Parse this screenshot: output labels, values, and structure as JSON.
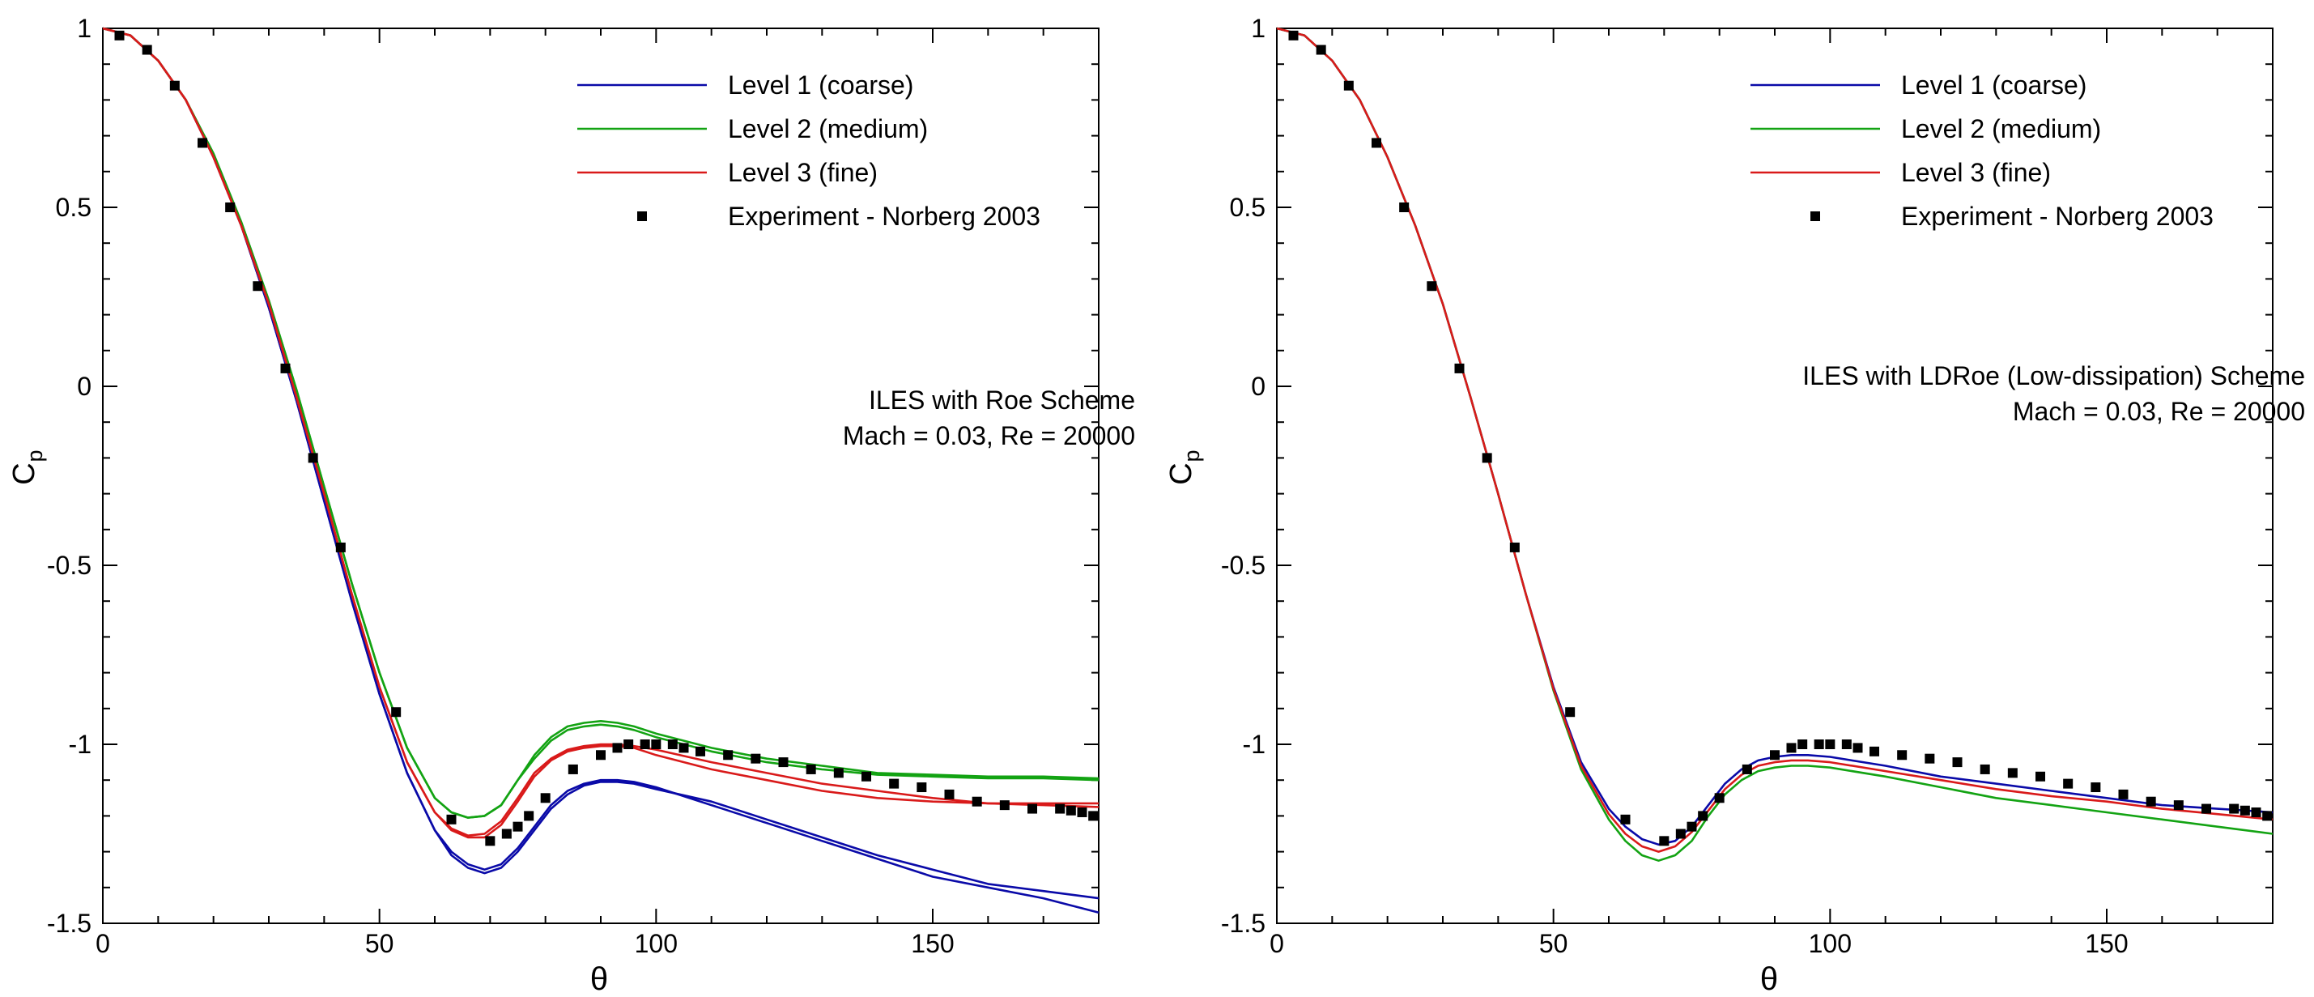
{
  "colors": {
    "level1": "#0a0aa8",
    "level2": "#13a313",
    "level3": "#d91a1a",
    "experiment": "#000000"
  },
  "chart_data": [
    {
      "type": "line",
      "panel": "left",
      "xlabel": "θ",
      "ylabel_main": "C",
      "ylabel_sub": "p",
      "xlim": [
        0,
        180
      ],
      "ylim": [
        -1.5,
        1
      ],
      "x_ticks": [
        0,
        50,
        100,
        150
      ],
      "y_ticks": [
        -1.5,
        -1,
        -0.5,
        0,
        0.5,
        1
      ],
      "y_tick_labels": [
        "-1.5",
        "-1",
        "-0.5",
        "0",
        "0.5",
        "1"
      ],
      "annotation": [
        "ILES with Roe Scheme",
        "Mach = 0.03, Re = 20000"
      ],
      "legend_position": "top-right",
      "series": [
        {
          "name": "Level 1 (coarse)",
          "style": "line",
          "color_key": "level1",
          "x": [
            0,
            5,
            10,
            15,
            20,
            25,
            30,
            35,
            40,
            45,
            50,
            55,
            60,
            63,
            66,
            69,
            72,
            75,
            78,
            81,
            84,
            87,
            90,
            93,
            96,
            100,
            110,
            120,
            130,
            140,
            150,
            160,
            170,
            180
          ],
          "y": [
            1,
            0.98,
            0.91,
            0.8,
            0.64,
            0.45,
            0.22,
            -0.04,
            -0.32,
            -0.6,
            -0.86,
            -1.08,
            -1.24,
            -1.3,
            -1.335,
            -1.35,
            -1.335,
            -1.29,
            -1.23,
            -1.17,
            -1.13,
            -1.11,
            -1.1,
            -1.1,
            -1.105,
            -1.12,
            -1.17,
            -1.22,
            -1.27,
            -1.32,
            -1.37,
            -1.4,
            -1.43,
            -1.47
          ]
        },
        {
          "name": "Level 1 (coarse)",
          "style": "line",
          "color_key": "level1",
          "legend": false,
          "x": [
            0,
            5,
            10,
            15,
            20,
            25,
            30,
            35,
            40,
            45,
            50,
            55,
            60,
            63,
            66,
            69,
            72,
            75,
            78,
            81,
            84,
            87,
            90,
            93,
            96,
            100,
            110,
            120,
            130,
            140,
            150,
            160,
            170,
            180
          ],
          "y": [
            1,
            0.98,
            0.91,
            0.8,
            0.64,
            0.45,
            0.22,
            -0.04,
            -0.32,
            -0.6,
            -0.86,
            -1.08,
            -1.24,
            -1.31,
            -1.345,
            -1.36,
            -1.345,
            -1.3,
            -1.24,
            -1.18,
            -1.14,
            -1.115,
            -1.105,
            -1.105,
            -1.11,
            -1.125,
            -1.16,
            -1.21,
            -1.26,
            -1.31,
            -1.35,
            -1.39,
            -1.41,
            -1.43
          ]
        },
        {
          "name": "Level 2 (medium)",
          "style": "line",
          "color_key": "level2",
          "x": [
            0,
            5,
            10,
            15,
            20,
            25,
            30,
            35,
            40,
            45,
            50,
            55,
            60,
            63,
            66,
            69,
            72,
            75,
            78,
            81,
            84,
            87,
            90,
            93,
            96,
            100,
            110,
            120,
            130,
            140,
            150,
            160,
            170,
            180
          ],
          "y": [
            1,
            0.98,
            0.91,
            0.8,
            0.65,
            0.46,
            0.24,
            -0.01,
            -0.28,
            -0.55,
            -0.8,
            -1.01,
            -1.15,
            -1.19,
            -1.205,
            -1.2,
            -1.17,
            -1.1,
            -1.03,
            -0.98,
            -0.95,
            -0.94,
            -0.935,
            -0.94,
            -0.95,
            -0.97,
            -1.01,
            -1.04,
            -1.06,
            -1.08,
            -1.085,
            -1.09,
            -1.09,
            -1.095
          ]
        },
        {
          "name": "Level 2 (medium)",
          "style": "line",
          "color_key": "level2",
          "legend": false,
          "x": [
            0,
            5,
            10,
            15,
            20,
            25,
            30,
            35,
            40,
            45,
            50,
            55,
            60,
            63,
            66,
            69,
            72,
            75,
            78,
            81,
            84,
            87,
            90,
            93,
            96,
            100,
            110,
            120,
            130,
            140,
            150,
            160,
            170,
            180
          ],
          "y": [
            1,
            0.98,
            0.91,
            0.8,
            0.65,
            0.46,
            0.24,
            -0.01,
            -0.28,
            -0.55,
            -0.8,
            -1.01,
            -1.15,
            -1.19,
            -1.205,
            -1.2,
            -1.17,
            -1.1,
            -1.04,
            -0.99,
            -0.96,
            -0.95,
            -0.945,
            -0.95,
            -0.96,
            -0.98,
            -1.02,
            -1.05,
            -1.07,
            -1.085,
            -1.09,
            -1.095,
            -1.095,
            -1.1
          ]
        },
        {
          "name": "Level 3 (fine)",
          "style": "line",
          "color_key": "level3",
          "x": [
            0,
            5,
            10,
            15,
            20,
            25,
            30,
            35,
            40,
            45,
            50,
            55,
            60,
            63,
            66,
            69,
            72,
            75,
            78,
            81,
            84,
            87,
            90,
            93,
            96,
            100,
            110,
            120,
            130,
            140,
            150,
            160,
            170,
            180
          ],
          "y": [
            1,
            0.98,
            0.91,
            0.8,
            0.64,
            0.45,
            0.23,
            -0.03,
            -0.3,
            -0.58,
            -0.84,
            -1.05,
            -1.19,
            -1.235,
            -1.255,
            -1.25,
            -1.215,
            -1.15,
            -1.08,
            -1.04,
            -1.015,
            -1.005,
            -1.0,
            -1.0,
            -1.005,
            -1.015,
            -1.05,
            -1.08,
            -1.11,
            -1.13,
            -1.15,
            -1.165,
            -1.17,
            -1.175
          ]
        },
        {
          "name": "Level 3 (fine)",
          "style": "line",
          "color_key": "level3",
          "legend": false,
          "x": [
            0,
            5,
            10,
            15,
            20,
            25,
            30,
            35,
            40,
            45,
            50,
            55,
            60,
            63,
            66,
            69,
            72,
            75,
            78,
            81,
            84,
            87,
            90,
            93,
            96,
            100,
            110,
            120,
            130,
            140,
            150,
            160,
            170,
            180
          ],
          "y": [
            1,
            0.98,
            0.91,
            0.8,
            0.64,
            0.45,
            0.23,
            -0.03,
            -0.3,
            -0.58,
            -0.84,
            -1.05,
            -1.19,
            -1.24,
            -1.26,
            -1.26,
            -1.225,
            -1.16,
            -1.09,
            -1.045,
            -1.02,
            -1.01,
            -1.005,
            -1.005,
            -1.01,
            -1.03,
            -1.07,
            -1.1,
            -1.13,
            -1.15,
            -1.16,
            -1.165,
            -1.165,
            -1.165
          ]
        },
        {
          "name": "Experiment - Norberg 2003",
          "style": "marker",
          "color_key": "experiment",
          "x": [
            3,
            8,
            13,
            18,
            23,
            28,
            33,
            38,
            43,
            53,
            63,
            70,
            73,
            75,
            77,
            80,
            85,
            90,
            93,
            95,
            98,
            100,
            103,
            105,
            108,
            113,
            118,
            123,
            128,
            133,
            138,
            143,
            148,
            153,
            158,
            163,
            168,
            173,
            175,
            177,
            179
          ],
          "y": [
            0.98,
            0.94,
            0.84,
            0.68,
            0.5,
            0.28,
            0.05,
            -0.2,
            -0.45,
            -0.91,
            -1.21,
            -1.27,
            -1.25,
            -1.23,
            -1.2,
            -1.15,
            -1.07,
            -1.03,
            -1.01,
            -1.0,
            -1.0,
            -1.0,
            -1.0,
            -1.01,
            -1.02,
            -1.03,
            -1.04,
            -1.05,
            -1.07,
            -1.08,
            -1.09,
            -1.11,
            -1.12,
            -1.14,
            -1.16,
            -1.17,
            -1.18,
            -1.18,
            -1.185,
            -1.19,
            -1.2
          ]
        }
      ]
    },
    {
      "type": "line",
      "panel": "right",
      "xlabel": "θ",
      "ylabel_main": "C",
      "ylabel_sub": "p",
      "xlim": [
        0,
        180
      ],
      "ylim": [
        -1.5,
        1
      ],
      "x_ticks": [
        0,
        50,
        100,
        150
      ],
      "y_ticks": [
        -1.5,
        -1,
        -0.5,
        0,
        0.5,
        1
      ],
      "y_tick_labels": [
        "-1.5",
        "-1",
        "-0.5",
        "0",
        "0.5",
        "1"
      ],
      "annotation": [
        "ILES with LDRoe (Low-dissipation) Scheme",
        "Mach = 0.03, Re = 20000"
      ],
      "legend_position": "top-right",
      "series": [
        {
          "name": "Level 1 (coarse)",
          "style": "line",
          "color_key": "level1",
          "x": [
            0,
            5,
            10,
            15,
            20,
            25,
            30,
            35,
            40,
            45,
            50,
            55,
            60,
            63,
            66,
            69,
            72,
            75,
            78,
            81,
            84,
            87,
            90,
            93,
            96,
            100,
            110,
            120,
            130,
            140,
            150,
            160,
            170,
            180
          ],
          "y": [
            1,
            0.98,
            0.91,
            0.8,
            0.64,
            0.45,
            0.23,
            -0.03,
            -0.3,
            -0.58,
            -0.84,
            -1.05,
            -1.18,
            -1.23,
            -1.265,
            -1.28,
            -1.27,
            -1.23,
            -1.17,
            -1.11,
            -1.07,
            -1.045,
            -1.035,
            -1.03,
            -1.03,
            -1.035,
            -1.06,
            -1.09,
            -1.11,
            -1.13,
            -1.15,
            -1.17,
            -1.18,
            -1.19
          ]
        },
        {
          "name": "Level 2 (medium)",
          "style": "line",
          "color_key": "level2",
          "x": [
            0,
            5,
            10,
            15,
            20,
            25,
            30,
            35,
            40,
            45,
            50,
            55,
            60,
            63,
            66,
            69,
            72,
            75,
            78,
            81,
            84,
            87,
            90,
            93,
            96,
            100,
            110,
            120,
            130,
            140,
            150,
            160,
            170,
            180
          ],
          "y": [
            1,
            0.98,
            0.91,
            0.8,
            0.64,
            0.45,
            0.23,
            -0.03,
            -0.3,
            -0.58,
            -0.85,
            -1.07,
            -1.21,
            -1.27,
            -1.31,
            -1.325,
            -1.31,
            -1.27,
            -1.2,
            -1.14,
            -1.1,
            -1.075,
            -1.065,
            -1.06,
            -1.06,
            -1.065,
            -1.09,
            -1.12,
            -1.15,
            -1.17,
            -1.19,
            -1.21,
            -1.23,
            -1.25
          ]
        },
        {
          "name": "Level 3 (fine)",
          "style": "line",
          "color_key": "level3",
          "x": [
            0,
            5,
            10,
            15,
            20,
            25,
            30,
            35,
            40,
            45,
            50,
            55,
            60,
            63,
            66,
            69,
            72,
            75,
            78,
            81,
            84,
            87,
            90,
            93,
            96,
            100,
            110,
            120,
            130,
            140,
            150,
            160,
            170,
            180
          ],
          "y": [
            1,
            0.98,
            0.91,
            0.8,
            0.64,
            0.45,
            0.23,
            -0.03,
            -0.3,
            -0.58,
            -0.845,
            -1.06,
            -1.195,
            -1.25,
            -1.285,
            -1.3,
            -1.285,
            -1.245,
            -1.185,
            -1.125,
            -1.085,
            -1.06,
            -1.05,
            -1.045,
            -1.045,
            -1.05,
            -1.075,
            -1.1,
            -1.125,
            -1.145,
            -1.16,
            -1.18,
            -1.195,
            -1.21
          ]
        },
        {
          "name": "Experiment - Norberg 2003",
          "style": "marker",
          "color_key": "experiment",
          "x": [
            3,
            8,
            13,
            18,
            23,
            28,
            33,
            38,
            43,
            53,
            63,
            70,
            73,
            75,
            77,
            80,
            85,
            90,
            93,
            95,
            98,
            100,
            103,
            105,
            108,
            113,
            118,
            123,
            128,
            133,
            138,
            143,
            148,
            153,
            158,
            163,
            168,
            173,
            175,
            177,
            179
          ],
          "y": [
            0.98,
            0.94,
            0.84,
            0.68,
            0.5,
            0.28,
            0.05,
            -0.2,
            -0.45,
            -0.91,
            -1.21,
            -1.27,
            -1.25,
            -1.23,
            -1.2,
            -1.15,
            -1.07,
            -1.03,
            -1.01,
            -1.0,
            -1.0,
            -1.0,
            -1.0,
            -1.01,
            -1.02,
            -1.03,
            -1.04,
            -1.05,
            -1.07,
            -1.08,
            -1.09,
            -1.11,
            -1.12,
            -1.14,
            -1.16,
            -1.17,
            -1.18,
            -1.18,
            -1.185,
            -1.19,
            -1.2
          ]
        }
      ]
    }
  ]
}
